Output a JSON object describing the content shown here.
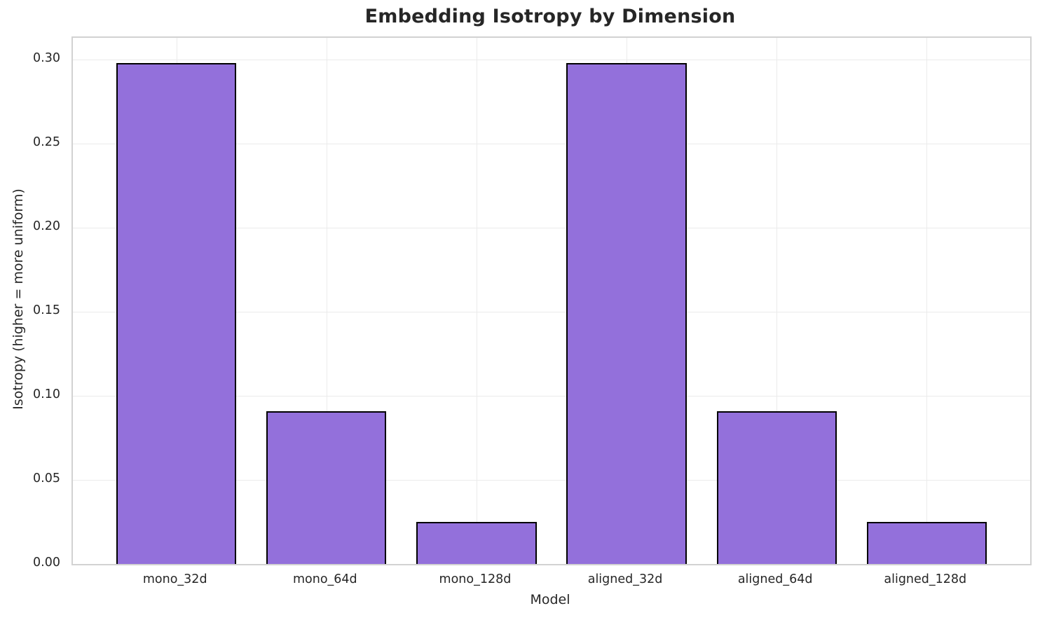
{
  "chart_data": {
    "type": "bar",
    "title": "Embedding Isotropy by Dimension",
    "xlabel": "Model",
    "ylabel": "Isotropy (higher = more uniform)",
    "categories": [
      "mono_32d",
      "mono_64d",
      "mono_128d",
      "aligned_32d",
      "aligned_64d",
      "aligned_128d"
    ],
    "values": [
      0.298,
      0.091,
      0.025,
      0.298,
      0.091,
      0.025
    ],
    "ylim": [
      0,
      0.313
    ],
    "yticks": [
      0.0,
      0.05,
      0.1,
      0.15,
      0.2,
      0.25,
      0.3
    ],
    "ytick_labels": [
      "0.00",
      "0.05",
      "0.10",
      "0.15",
      "0.20",
      "0.25",
      "0.30"
    ],
    "grid": true,
    "legend_position": "none",
    "bar_color": "#9370DB",
    "bar_edge_color": "#000000",
    "grid_color": "#ebebeb",
    "spine_color": "#d2d2d2",
    "text_color": "#262626",
    "bar_width_fraction": 0.8,
    "x_margin": 0.05
  }
}
